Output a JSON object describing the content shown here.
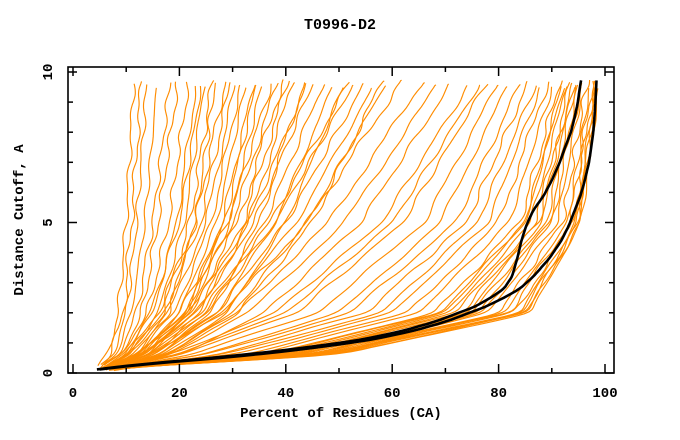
{
  "page": {
    "background": "#ffffff"
  },
  "chart_data": {
    "type": "line",
    "title": "T0996-D2",
    "xlabel": "Percent of Residues (CA)",
    "ylabel": "Distance Cutoff, A",
    "xlim": [
      0,
      100
    ],
    "ylim": [
      0,
      10
    ],
    "grid": false,
    "legend": "none",
    "x_major_ticks": [
      0,
      20,
      40,
      60,
      80,
      100
    ],
    "x_minor_ticks": [
      10,
      30,
      50,
      70,
      90
    ],
    "x_tick_labels": [
      "0",
      "20",
      "40",
      "60",
      "80",
      "100"
    ],
    "y_major_ticks": [
      0,
      5,
      10
    ],
    "y_minor_ticks": [
      1,
      2,
      3,
      4,
      6,
      7,
      8,
      9
    ],
    "y_tick_labels": [
      "0",
      "5",
      "10"
    ],
    "colors": {
      "model_curve": "#ff8c00",
      "reference_curve": "#000000",
      "axis": "#000000",
      "background": "#ffffff"
    },
    "cutoff_nodes": [
      0.15,
      0.6,
      2,
      5,
      10
    ],
    "model_curves_percent_at_nodes": [
      [
        4.5,
        6.5,
        8.5,
        10,
        11.5
      ],
      [
        5,
        7,
        9.5,
        11,
        13
      ],
      [
        4.8,
        7.5,
        10,
        12,
        14
      ],
      [
        5.2,
        8,
        11,
        13.5,
        16
      ],
      [
        5,
        8.5,
        12,
        15,
        18.5
      ],
      [
        5.5,
        9,
        13,
        16,
        20
      ],
      [
        5,
        9,
        14,
        18,
        22
      ],
      [
        5.5,
        10,
        15,
        19.5,
        23.5
      ],
      [
        6,
        10.5,
        16,
        21,
        25
      ],
      [
        5,
        11,
        17,
        22,
        26.5
      ],
      [
        6.5,
        12,
        18,
        23,
        27
      ],
      [
        5.8,
        9.5,
        14.5,
        20,
        24.5
      ],
      [
        5,
        10,
        16,
        23,
        29
      ],
      [
        6,
        11,
        18,
        25,
        31
      ],
      [
        6.5,
        12.5,
        20,
        27,
        33
      ],
      [
        5.5,
        13,
        21,
        28,
        34.5
      ],
      [
        7,
        14,
        22,
        29.5,
        36
      ],
      [
        6,
        12,
        19,
        26,
        32
      ],
      [
        5.2,
        10.5,
        17,
        24,
        30
      ],
      [
        6.8,
        13.5,
        21.5,
        28.5,
        35
      ],
      [
        5.5,
        12,
        20,
        29,
        38
      ],
      [
        6,
        13,
        22,
        31,
        40
      ],
      [
        7,
        15,
        24,
        33,
        42
      ],
      [
        6.5,
        14,
        23,
        32,
        41
      ],
      [
        5.8,
        12.5,
        21,
        30,
        39
      ],
      [
        7.5,
        16,
        26,
        35,
        44
      ],
      [
        6,
        13,
        23,
        34,
        46
      ],
      [
        6.5,
        14.5,
        25,
        36,
        48
      ],
      [
        7,
        16,
        27,
        38,
        50
      ],
      [
        5.5,
        12,
        22,
        33,
        45
      ],
      [
        7.5,
        17,
        29,
        40,
        52
      ],
      [
        6,
        14,
        25,
        38,
        54
      ],
      [
        6.5,
        15,
        27,
        40,
        56
      ],
      [
        7,
        16,
        28,
        42,
        58
      ],
      [
        7.5,
        17.5,
        30,
        44,
        60
      ],
      [
        5.8,
        13,
        24,
        37,
        53
      ],
      [
        8,
        18,
        31,
        45,
        59
      ],
      [
        6,
        15,
        28,
        44,
        63
      ],
      [
        7,
        17,
        31,
        48,
        67
      ],
      [
        7.5,
        18,
        33,
        51,
        70
      ],
      [
        8,
        20,
        36,
        54,
        72.5
      ],
      [
        6.5,
        18,
        38,
        58,
        76
      ],
      [
        7,
        20,
        42,
        62,
        79
      ],
      [
        7.5,
        22,
        46,
        66,
        81
      ],
      [
        8,
        24,
        50,
        69,
        83
      ],
      [
        6,
        19,
        40,
        60,
        78
      ],
      [
        7,
        25,
        52,
        72,
        85
      ],
      [
        8.5,
        27,
        55,
        74,
        86.5
      ],
      [
        7.5,
        28,
        58,
        76,
        88
      ],
      [
        6.5,
        30,
        60,
        78,
        89
      ],
      [
        8,
        32,
        63,
        80,
        90
      ],
      [
        7,
        34,
        65,
        82,
        91
      ],
      [
        8.5,
        36,
        68,
        84,
        92
      ],
      [
        8,
        38,
        70,
        85,
        93
      ],
      [
        7.5,
        40,
        72,
        87,
        94
      ],
      [
        8.2,
        42,
        74,
        88,
        94.8
      ],
      [
        8.5,
        44,
        76,
        89.5,
        95.5
      ],
      [
        6.2,
        46,
        78,
        91,
        96.3
      ],
      [
        7.8,
        47,
        80,
        92,
        97
      ],
      [
        8,
        45,
        77,
        90,
        96
      ],
      [
        7,
        48,
        81,
        93,
        97.6
      ],
      [
        8.8,
        43,
        75,
        89,
        95
      ],
      [
        5.5,
        46,
        83,
        94,
        98.2
      ],
      [
        7.2,
        41,
        73,
        87.5,
        94.5
      ],
      [
        6,
        47,
        84,
        94.5,
        98.6
      ],
      [
        8,
        44,
        82,
        93.5,
        98
      ],
      [
        7.5,
        48,
        85,
        95,
        99
      ],
      [
        6.8,
        39,
        71,
        86,
        93.5
      ],
      [
        6.8,
        47,
        84.5,
        94.8,
        98.8
      ],
      [
        7,
        50,
        86,
        95.5,
        99.3
      ],
      [
        7.4,
        37,
        69,
        85,
        92.5
      ],
      [
        6.5,
        49,
        85.5,
        95.2,
        99
      ]
    ],
    "reference_curves": [
      {
        "name": "black-curve-1",
        "points": [
          [
            0.12,
            4.5
          ],
          [
            0.3,
            13
          ],
          [
            0.5,
            26
          ],
          [
            0.7,
            37
          ],
          [
            0.9,
            46
          ],
          [
            1.1,
            54
          ],
          [
            1.4,
            62
          ],
          [
            1.7,
            68
          ],
          [
            2.0,
            72.5
          ],
          [
            2.2,
            75.5
          ],
          [
            2.5,
            78.5
          ],
          [
            2.8,
            81
          ],
          [
            3.2,
            82.5
          ],
          [
            3.8,
            83.5
          ],
          [
            4.4,
            84.3
          ],
          [
            4.9,
            85.2
          ],
          [
            5.4,
            86.5
          ],
          [
            5.9,
            88.5
          ],
          [
            6.4,
            90
          ],
          [
            7.0,
            91.5
          ],
          [
            7.5,
            92.5
          ],
          [
            8.0,
            93.6
          ],
          [
            8.5,
            94.3
          ],
          [
            9.0,
            94.9
          ],
          [
            9.4,
            95.2
          ],
          [
            9.72,
            95.5
          ]
        ]
      },
      {
        "name": "black-curve-2",
        "points": [
          [
            0.12,
            5
          ],
          [
            0.3,
            14
          ],
          [
            0.5,
            28
          ],
          [
            0.7,
            39
          ],
          [
            0.9,
            48
          ],
          [
            1.1,
            56
          ],
          [
            1.4,
            64
          ],
          [
            1.7,
            70
          ],
          [
            2.0,
            74.5
          ],
          [
            2.2,
            77.5
          ],
          [
            2.5,
            81
          ],
          [
            2.8,
            84
          ],
          [
            3.2,
            86.5
          ],
          [
            3.8,
            89.5
          ],
          [
            4.4,
            91.8
          ],
          [
            4.9,
            93.2
          ],
          [
            5.4,
            94.3
          ],
          [
            5.9,
            95.4
          ],
          [
            6.4,
            96.2
          ],
          [
            7.0,
            97
          ],
          [
            7.5,
            97.4
          ],
          [
            8.0,
            97.8
          ],
          [
            8.7,
            98.1
          ],
          [
            9.3,
            98.3
          ],
          [
            9.72,
            98.4
          ]
        ]
      }
    ]
  }
}
